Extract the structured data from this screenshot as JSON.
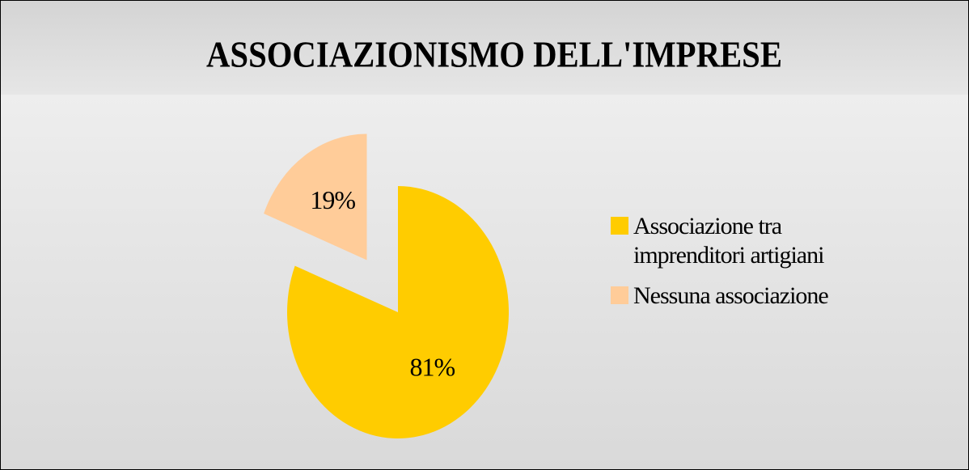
{
  "chart_data": {
    "type": "pie",
    "title": "ASSOCIAZIONISMO DELL'IMPRESE",
    "categories": [
      "Associazione tra imprenditori artigiani",
      "Nessuna associazione"
    ],
    "values": [
      81,
      19
    ],
    "value_labels": [
      "81%",
      "19%"
    ],
    "colors": [
      "#ffcc00",
      "#ffcc99"
    ],
    "exploded": [
      false,
      true
    ],
    "legend": "right"
  }
}
